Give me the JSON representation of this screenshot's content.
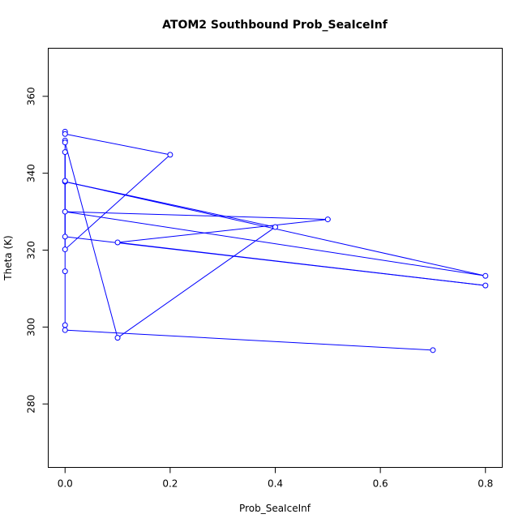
{
  "chart_data": {
    "type": "line",
    "title": "ATOM2 Southbound Prob_SeaIceInf",
    "xlabel": "Prob_SeaIceInf",
    "ylabel": "Theta (K)",
    "xlim": [
      -0.032,
      0.832
    ],
    "ylim": [
      263.5,
      372.5
    ],
    "x_ticks": [
      0.0,
      0.2,
      0.4,
      0.6,
      0.8
    ],
    "x_tick_labels": [
      "0.0",
      "0.2",
      "0.4",
      "0.6",
      "0.8"
    ],
    "y_ticks": [
      280,
      300,
      320,
      340,
      360
    ],
    "y_tick_labels": [
      "280",
      "300",
      "320",
      "340",
      "360"
    ],
    "grid": false,
    "legend": "none",
    "series": [
      {
        "color": "#0000ff",
        "marker": "open-circle",
        "points": [
          {
            "x": 0.0,
            "y": 350.8
          },
          {
            "x": 0.0,
            "y": 350.2
          },
          {
            "x": 0.2,
            "y": 344.8
          },
          {
            "x": 0.0,
            "y": 320.2
          },
          {
            "x": 0.0,
            "y": 348.5
          },
          {
            "x": 0.0,
            "y": 348.0
          },
          {
            "x": 0.1,
            "y": 297.2
          },
          {
            "x": 0.4,
            "y": 326.0
          },
          {
            "x": 0.0,
            "y": 337.8
          },
          {
            "x": 0.8,
            "y": 313.3
          },
          {
            "x": 0.0,
            "y": 330.0
          },
          {
            "x": 0.5,
            "y": 328.0
          },
          {
            "x": 0.1,
            "y": 322.0
          },
          {
            "x": 0.8,
            "y": 310.8
          },
          {
            "x": 0.0,
            "y": 323.5
          },
          {
            "x": 0.0,
            "y": 345.5
          },
          {
            "x": 0.0,
            "y": 338.0
          },
          {
            "x": 0.0,
            "y": 314.5
          },
          {
            "x": 0.0,
            "y": 300.5
          },
          {
            "x": 0.0,
            "y": 299.2
          },
          {
            "x": 0.7,
            "y": 294.0
          }
        ]
      }
    ]
  }
}
